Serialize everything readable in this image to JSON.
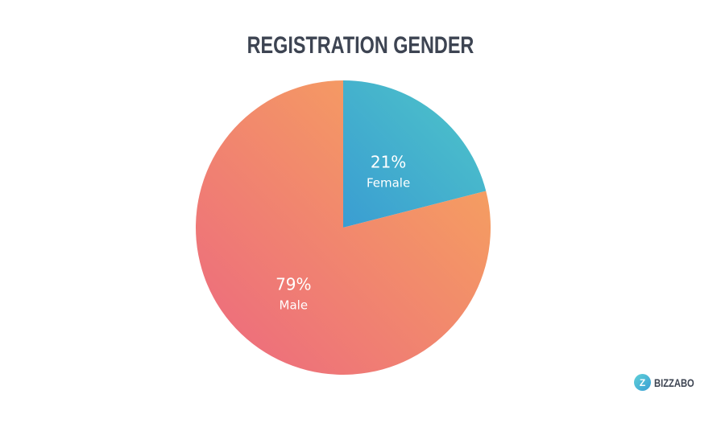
{
  "chart_data": {
    "type": "pie",
    "title": "REGISTRATION GENDER",
    "slices": [
      {
        "label": "Female",
        "value": 21,
        "value_label": "21%",
        "colors": [
          "#4fc6c8",
          "#3a9dd2"
        ]
      },
      {
        "label": "Male",
        "value": 79,
        "value_label": "79%",
        "colors": [
          "#f7aa5a",
          "#ec6780"
        ]
      }
    ],
    "start_angle": "12 o'clock, clockwise",
    "legend": "none"
  },
  "logo": {
    "text": "BIZZABO",
    "mark": "Z"
  }
}
